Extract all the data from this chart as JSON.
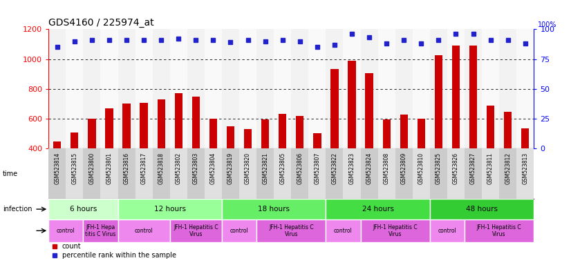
{
  "title": "GDS4160 / 225974_at",
  "samples": [
    "GSM523814",
    "GSM523815",
    "GSM523800",
    "GSM523801",
    "GSM523816",
    "GSM523817",
    "GSM523818",
    "GSM523802",
    "GSM523803",
    "GSM523804",
    "GSM523819",
    "GSM523820",
    "GSM523821",
    "GSM523805",
    "GSM523806",
    "GSM523807",
    "GSM523822",
    "GSM523823",
    "GSM523824",
    "GSM523808",
    "GSM523809",
    "GSM523810",
    "GSM523825",
    "GSM523826",
    "GSM523827",
    "GSM523811",
    "GSM523812",
    "GSM523813"
  ],
  "counts": [
    450,
    510,
    600,
    670,
    700,
    705,
    730,
    770,
    750,
    600,
    550,
    530,
    595,
    635,
    620,
    505,
    935,
    990,
    905,
    595,
    630,
    600,
    1025,
    1090,
    1090,
    690,
    645,
    535
  ],
  "percentile_ranks": [
    85,
    90,
    91,
    91,
    91,
    91,
    91,
    92,
    91,
    91,
    89,
    91,
    90,
    91,
    90,
    85,
    87,
    96,
    93,
    88,
    91,
    88,
    91,
    96,
    96,
    91,
    91,
    88
  ],
  "bar_color": "#cc0000",
  "dot_color": "#2222cc",
  "ylim_left": [
    400,
    1200
  ],
  "ylim_right": [
    0,
    100
  ],
  "yticks_left": [
    400,
    600,
    800,
    1000,
    1200
  ],
  "yticks_right": [
    0,
    25,
    50,
    75,
    100
  ],
  "grid_values": [
    600,
    800,
    1000
  ],
  "time_groups": [
    {
      "label": "6 hours",
      "start": 0,
      "end": 4,
      "color": "#ccffcc"
    },
    {
      "label": "12 hours",
      "start": 4,
      "end": 10,
      "color": "#99ff99"
    },
    {
      "label": "18 hours",
      "start": 10,
      "end": 16,
      "color": "#66ee66"
    },
    {
      "label": "24 hours",
      "start": 16,
      "end": 22,
      "color": "#44dd44"
    },
    {
      "label": "48 hours",
      "start": 22,
      "end": 28,
      "color": "#33cc33"
    }
  ],
  "infection_groups": [
    {
      "label": "control",
      "start": 0,
      "end": 2,
      "color": "#ee88ee"
    },
    {
      "label": "JFH-1 Hepa\ntitis C Virus",
      "start": 2,
      "end": 4,
      "color": "#dd66dd"
    },
    {
      "label": "control",
      "start": 4,
      "end": 7,
      "color": "#ee88ee"
    },
    {
      "label": "JFH-1 Hepatitis C\nVirus",
      "start": 7,
      "end": 10,
      "color": "#dd66dd"
    },
    {
      "label": "control",
      "start": 10,
      "end": 12,
      "color": "#ee88ee"
    },
    {
      "label": "JFH-1 Hepatitis C\nVirus",
      "start": 12,
      "end": 16,
      "color": "#dd66dd"
    },
    {
      "label": "control",
      "start": 16,
      "end": 18,
      "color": "#ee88ee"
    },
    {
      "label": "JFH-1 Hepatitis C\nVirus",
      "start": 18,
      "end": 22,
      "color": "#dd66dd"
    },
    {
      "label": "control",
      "start": 22,
      "end": 24,
      "color": "#ee88ee"
    },
    {
      "label": "JFH-1 Hepatitis C\nVirus",
      "start": 24,
      "end": 28,
      "color": "#dd66dd"
    }
  ],
  "legend_count_color": "#cc0000",
  "legend_dot_color": "#2222cc",
  "bg_plot": "#ffffff",
  "bg_xlabels": "#d8d8d8",
  "right_axis_label": "100%"
}
